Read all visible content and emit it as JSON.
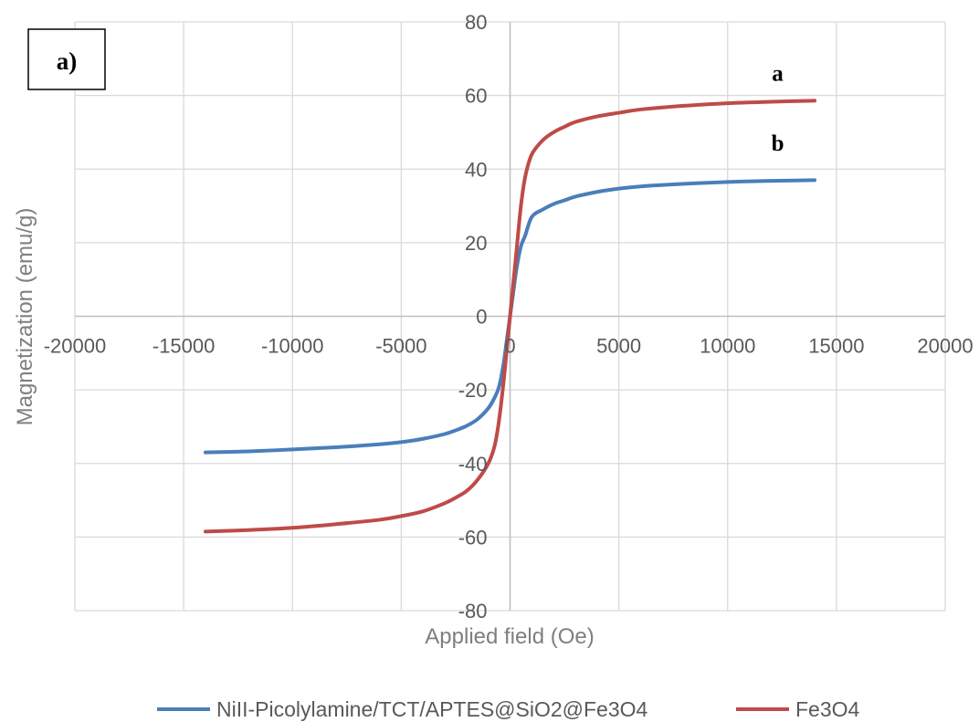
{
  "chart_data": {
    "type": "line",
    "panel_label": "a)",
    "xlabel": "Applied field (Oe)",
    "ylabel": "Magnetization (emu/g)",
    "xlim": [
      -20000,
      20000
    ],
    "ylim": [
      -80,
      80
    ],
    "xticks": [
      -20000,
      -15000,
      -10000,
      -5000,
      0,
      5000,
      10000,
      15000,
      20000
    ],
    "yticks": [
      -80,
      -60,
      -40,
      -20,
      0,
      20,
      40,
      60,
      80
    ],
    "grid": true,
    "legend_position": "bottom",
    "series": [
      {
        "name": "NiII-Picolylamine/TCT/APTES@SiO2@Fe3O4",
        "color": "#4a7ebb",
        "x": [
          -14000,
          -12000,
          -10000,
          -8000,
          -6000,
          -5000,
          -4000,
          -3000,
          -2500,
          -2000,
          -1500,
          -1000,
          -700,
          -500,
          -300,
          -150,
          0,
          150,
          300,
          500,
          700,
          1000,
          1500,
          2000,
          2500,
          3000,
          4000,
          5000,
          6000,
          8000,
          10000,
          12000,
          14000
        ],
        "y": [
          -37,
          -36.7,
          -36.2,
          -35.6,
          -34.8,
          -34.2,
          -33.3,
          -32.0,
          -31.0,
          -29.8,
          -28.0,
          -25.0,
          -22.0,
          -19.0,
          -13.0,
          -6.5,
          0,
          6.5,
          13.0,
          19.0,
          22.0,
          27.0,
          29.0,
          30.5,
          31.5,
          32.5,
          33.8,
          34.7,
          35.3,
          36.0,
          36.5,
          36.8,
          37.0
        ]
      },
      {
        "name": "Fe3O4",
        "color": "#be4b48",
        "x": [
          -14000,
          -12000,
          -10000,
          -8000,
          -6000,
          -5000,
          -4000,
          -3000,
          -2500,
          -2000,
          -1500,
          -1000,
          -700,
          -500,
          -300,
          -150,
          0,
          150,
          300,
          500,
          700,
          1000,
          1500,
          2000,
          2500,
          3000,
          4000,
          5000,
          6000,
          8000,
          10000,
          12000,
          14000
        ],
        "y": [
          -58.5,
          -58.1,
          -57.5,
          -56.5,
          -55.3,
          -54.3,
          -53.0,
          -50.8,
          -49.3,
          -47.5,
          -44.5,
          -40.0,
          -35.0,
          -28.0,
          -18.0,
          -9.0,
          0,
          9.0,
          18.0,
          30.0,
          38.0,
          44.0,
          47.8,
          50.0,
          51.5,
          52.8,
          54.3,
          55.3,
          56.2,
          57.2,
          57.9,
          58.3,
          58.6
        ]
      }
    ],
    "annotations": [
      {
        "text": "a",
        "x": 12300,
        "y": 64
      },
      {
        "text": "b",
        "x": 12300,
        "y": 45
      }
    ]
  }
}
